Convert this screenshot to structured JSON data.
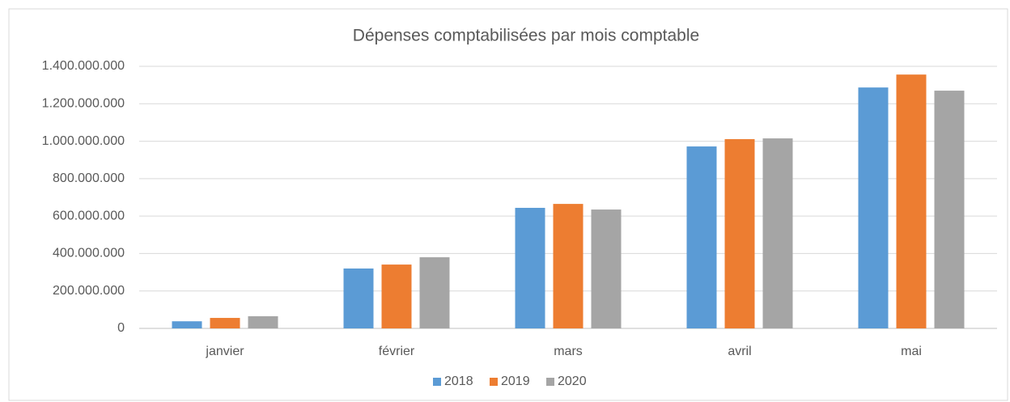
{
  "chart_data": {
    "type": "bar",
    "title": "Dépenses comptabilisées par mois comptable",
    "categories": [
      "janvier",
      "février",
      "mars",
      "avril",
      "mai"
    ],
    "series": [
      {
        "name": "2018",
        "color": "#5b9bd5",
        "values": [
          38000000,
          320000000,
          644000000,
          972000000,
          1287000000
        ]
      },
      {
        "name": "2019",
        "color": "#ed7d31",
        "values": [
          56000000,
          341000000,
          665000000,
          1011000000,
          1356000000
        ]
      },
      {
        "name": "2020",
        "color": "#a5a5a5",
        "values": [
          65000000,
          380000000,
          635000000,
          1015000000,
          1270000000
        ]
      }
    ],
    "ylim": [
      0,
      1400000000
    ],
    "yticks": [
      0,
      {
        "value": 200000000,
        "label": "200.000.000"
      },
      {
        "value": 400000000,
        "label": "400.000.000"
      },
      {
        "value": 600000000,
        "label": "600.000.000"
      },
      {
        "value": 800000000,
        "label": "800.000.000"
      },
      {
        "value": 1000000000,
        "label": "1.000.000.000"
      },
      {
        "value": 1200000000,
        "label": "1.200.000.000"
      },
      {
        "value": 1400000000,
        "label": "1.400.000.000"
      }
    ],
    "grid": true,
    "legend": "bottom"
  }
}
